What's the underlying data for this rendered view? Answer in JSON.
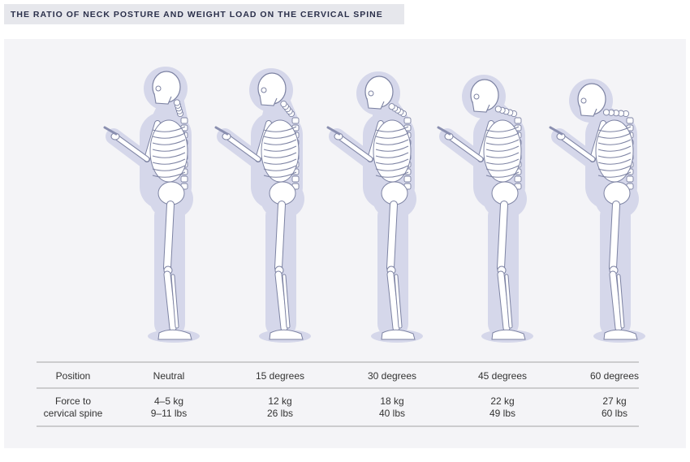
{
  "header": {
    "title": "THE RATIO OF NECK POSTURE AND WEIGHT LOAD ON THE CERVICAL SPINE"
  },
  "table": {
    "rows": [
      [
        "Position",
        "Neutral",
        "15 degrees",
        "30 degrees",
        "45 degrees",
        "60 degrees"
      ],
      [
        [
          "Force to",
          "cervical spine"
        ],
        [
          "4–5 kg",
          "9–11 lbs"
        ],
        [
          "12 kg",
          "26 lbs"
        ],
        [
          "18 kg",
          "40 lbs"
        ],
        [
          "22 kg",
          "49 lbs"
        ],
        [
          "27 kg",
          "60 lbs"
        ]
      ]
    ]
  }
}
